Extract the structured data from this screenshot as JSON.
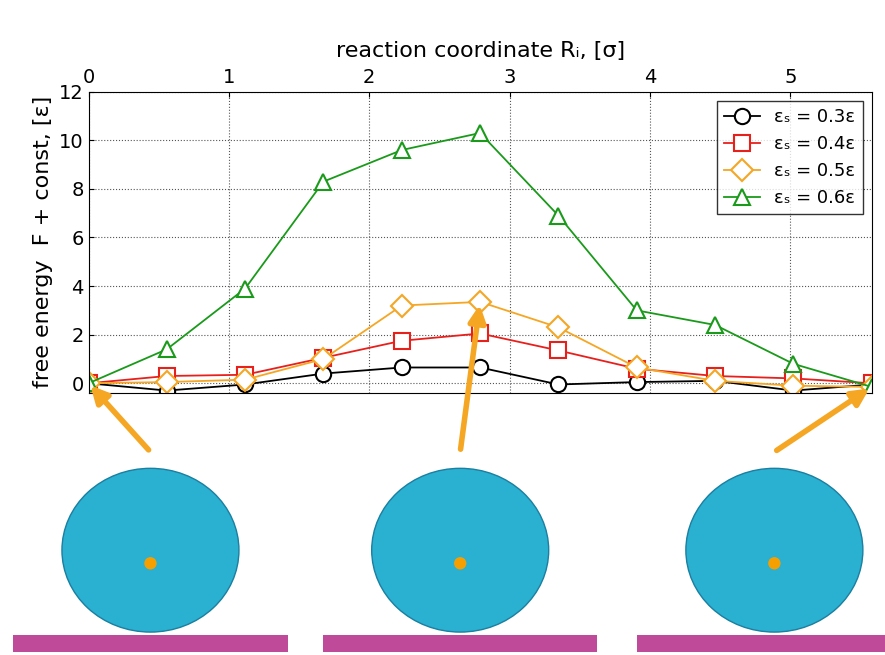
{
  "chart_data": {
    "type": "line",
    "x_label": "reaction coordinate Rᵢ, [σ]",
    "y_label": "free energy  F + const, [ε]",
    "x": [
      0,
      0.558,
      1.116,
      1.674,
      2.232,
      2.79,
      3.348,
      3.906,
      4.464,
      5.022,
      5.58
    ],
    "series": [
      {
        "name": "εₛ = 0.3ε",
        "color": "#000000",
        "marker": "circle",
        "values": [
          0,
          -0.3,
          -0.05,
          0.4,
          0.65,
          0.65,
          -0.05,
          0.05,
          0.1,
          -0.3,
          -0.05
        ]
      },
      {
        "name": "εₛ = 0.4ε",
        "color": "#e8201c",
        "marker": "square",
        "values": [
          0,
          0.3,
          0.35,
          1.05,
          1.75,
          2.05,
          1.35,
          0.6,
          0.3,
          0.2,
          0
        ]
      },
      {
        "name": "εₛ = 0.5ε",
        "color": "#f5a623",
        "marker": "diamond",
        "values": [
          0,
          0.05,
          0.15,
          1.0,
          3.2,
          3.35,
          2.3,
          0.65,
          0.1,
          -0.1,
          -0.15
        ]
      },
      {
        "name": "εₛ = 0.6ε",
        "color": "#1a9a1a",
        "marker": "triangle",
        "values": [
          0,
          1.4,
          3.9,
          8.3,
          9.6,
          10.3,
          6.9,
          3.0,
          2.4,
          0.8,
          -0.15
        ]
      }
    ],
    "xlim": [
      0,
      5.58
    ],
    "xticks": [
      0,
      1,
      2,
      3,
      4,
      5
    ],
    "ylim": [
      -0.4,
      12
    ],
    "yticks": [
      0,
      2,
      4,
      6,
      8,
      10,
      12
    ],
    "grid": true,
    "legend": "upper right"
  }
}
